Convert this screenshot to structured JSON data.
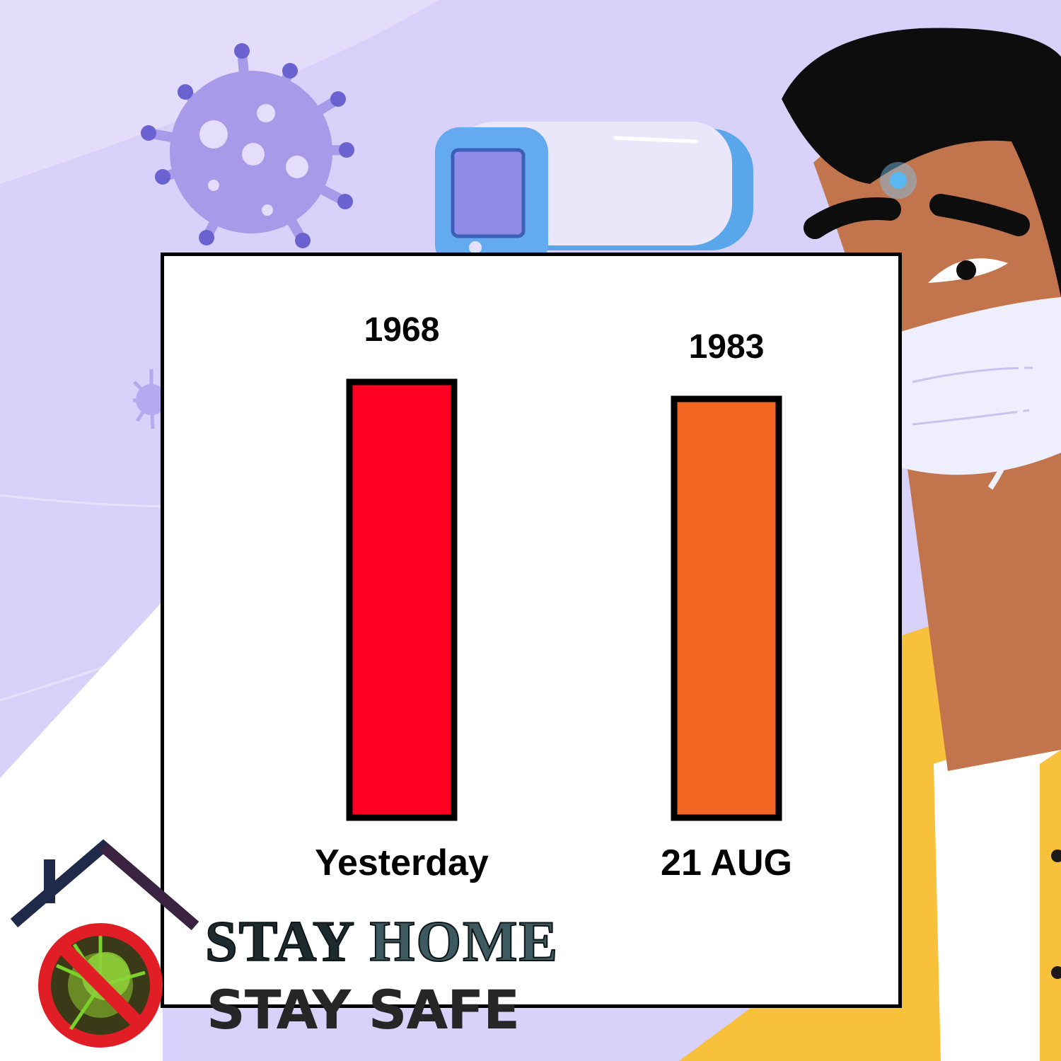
{
  "chart_data": {
    "type": "bar",
    "categories": [
      "Yesterday",
      "21 AUG"
    ],
    "values": [
      1968,
      1983
    ],
    "data_labels": [
      "1968",
      "1983"
    ],
    "colors": [
      "#ff0020",
      "#f26522"
    ],
    "title": "",
    "xlabel": "",
    "ylabel": ""
  },
  "logo": {
    "line1_a": "STAY",
    "line1_b": "HOME",
    "line2": "STAY SAFE"
  },
  "colors": {
    "background": "#d8d1f9",
    "panel": "#ffffff",
    "border": "#000000"
  }
}
